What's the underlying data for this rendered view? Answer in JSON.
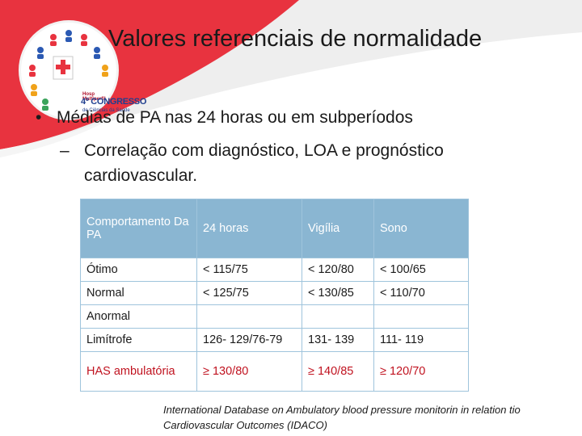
{
  "logo": {
    "small_text": "Hosp Multiperfil",
    "congress_text": "4º CONGRESSO",
    "sub_text": "de Ciências da Saúde"
  },
  "slide": {
    "title": "Valores referenciais de normalidade",
    "bullet_symbol": "•",
    "bullet_text": "Médias de PA nas 24 horas ou em subperíodos",
    "dash_symbol": "–",
    "sub_bullet_line1": "Correlação com diagnóstico, LOA e prognóstico",
    "sub_bullet_line2": "cardiovascular."
  },
  "table": {
    "headers": [
      "Comportamento Da PA",
      "24 horas",
      "Vigília",
      "Sono"
    ],
    "rows": [
      [
        "Ótimo",
        "< 115/75",
        "< 120/80",
        "< 100/65"
      ],
      [
        "Normal",
        "<  125/75",
        "< 130/85",
        "< 110/70"
      ],
      [
        "Anormal",
        "",
        "",
        ""
      ],
      [
        "Limítrofe",
        "126- 129/76-79",
        "131- 139",
        "111- 119"
      ],
      [
        "HAS ambulatória",
        "≥ 130/80",
        "≥ 140/85",
        "≥ 120/70"
      ]
    ]
  },
  "footnote": {
    "line1": "International Database on Ambulatory blood pressure monitorin in relation tio",
    "line2": "Cardiovascular Outcomes (IDACO)"
  },
  "colors": {
    "accent_red": "#e8333f",
    "header_blue": "#8ab6d2",
    "hypertension_red": "#c0121f",
    "background": "#ffffff"
  }
}
